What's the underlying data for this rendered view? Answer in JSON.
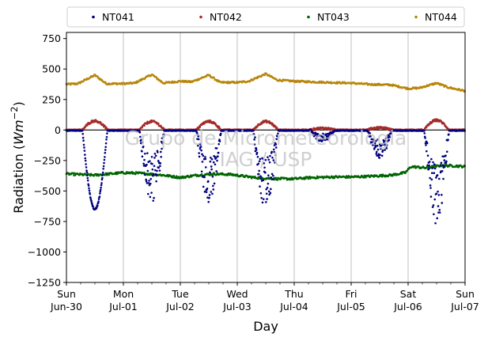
{
  "chart_data": {
    "type": "scatter",
    "xlabel": "Day",
    "ylabel": "Radiation (W m⁻²)",
    "ylabel_main": "Radiation (",
    "ylabel_unit_base": "Wm",
    "ylabel_unit_exp": "−2",
    "ylabel_close": ")",
    "xlim": [
      0,
      7
    ],
    "ylim": [
      -1250,
      800
    ],
    "yticks": [
      -1250,
      -1000,
      -750,
      -500,
      -250,
      0,
      250,
      500,
      750
    ],
    "ytick_labels": [
      "−1250",
      "−1000",
      "−750",
      "−500",
      "−250",
      "0",
      "250",
      "500",
      "750"
    ],
    "xtick_labels": [
      {
        "day": "Sun",
        "date": "Jun-30"
      },
      {
        "day": "Mon",
        "date": "Jul-01"
      },
      {
        "day": "Tue",
        "date": "Jul-02"
      },
      {
        "day": "Wed",
        "date": "Jul-03"
      },
      {
        "day": "Thu",
        "date": "Jul-04"
      },
      {
        "day": "Fri",
        "date": "Jul-05"
      },
      {
        "day": "Sat",
        "date": "Jul-06"
      },
      {
        "day": "Sun",
        "date": "Jul-07"
      }
    ],
    "grid": "vertical",
    "legend_position": "top",
    "watermark": [
      "Grupo de Micrometeorologia",
      "IAG / USP"
    ],
    "series": [
      {
        "name": "NT041",
        "color": "#00007f",
        "nightly": -5,
        "day_minima": [
          -650,
          -600,
          -600,
          -650,
          -100,
          -230,
          -790
        ]
      },
      {
        "name": "NT042",
        "color": "#a52a2a",
        "nightly": 2,
        "day_peaks": [
          75,
          70,
          70,
          70,
          15,
          20,
          80
        ]
      },
      {
        "name": "NT043",
        "color": "#006400",
        "x": [
          0,
          0.5,
          1,
          1.3,
          1.7,
          2,
          2.3,
          2.6,
          2.9,
          3.3,
          3.7,
          4,
          4.3,
          4.7,
          5,
          5.3,
          5.7,
          5.95,
          6.05,
          6.3,
          6.6,
          6.85,
          7
        ],
        "y": [
          -360,
          -370,
          -350,
          -355,
          -370,
          -390,
          -370,
          -360,
          -365,
          -390,
          -400,
          -400,
          -390,
          -385,
          -385,
          -380,
          -370,
          -350,
          -300,
          -310,
          -290,
          -295,
          -300
        ]
      },
      {
        "name": "NT044",
        "color": "#b8860b",
        "x": [
          0,
          0.2,
          0.5,
          0.7,
          1,
          1.2,
          1.5,
          1.7,
          2,
          2.2,
          2.5,
          2.7,
          3,
          3.2,
          3.5,
          3.7,
          4,
          4.3,
          4.6,
          5,
          5.3,
          5.7,
          6,
          6.2,
          6.5,
          6.7,
          7
        ],
        "y": [
          375,
          380,
          450,
          380,
          380,
          385,
          455,
          385,
          400,
          395,
          450,
          390,
          390,
          400,
          460,
          410,
          400,
          395,
          390,
          385,
          375,
          370,
          340,
          345,
          385,
          350,
          320
        ]
      }
    ]
  }
}
